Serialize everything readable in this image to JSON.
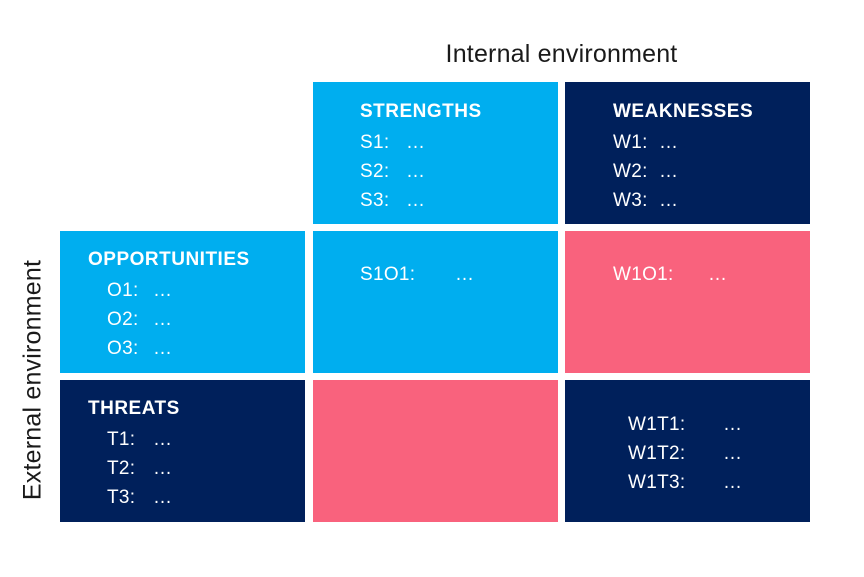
{
  "axes": {
    "top_label": "Internal environment",
    "left_label": "External environment"
  },
  "strengths": {
    "title": "STRENGTHS",
    "items": [
      {
        "key": "S1:",
        "value": "…"
      },
      {
        "key": "S2:",
        "value": "…"
      },
      {
        "key": "S3:",
        "value": "…"
      }
    ]
  },
  "weaknesses": {
    "title": "WEAKNESSES",
    "items": [
      {
        "key": "W1:",
        "value": "…"
      },
      {
        "key": "W2:",
        "value": "…"
      },
      {
        "key": "W3:",
        "value": "…"
      }
    ]
  },
  "opportunities": {
    "title": "OPPORTUNITIES",
    "items": [
      {
        "key": "O1:",
        "value": "…"
      },
      {
        "key": "O2:",
        "value": "…"
      },
      {
        "key": "O3:",
        "value": "…"
      }
    ]
  },
  "threats": {
    "title": "THREATS",
    "items": [
      {
        "key": "T1:",
        "value": "…"
      },
      {
        "key": "T2:",
        "value": "…"
      },
      {
        "key": "T3:",
        "value": "…"
      }
    ]
  },
  "so": {
    "items": [
      {
        "key": "S1O1:",
        "value": "…"
      }
    ]
  },
  "wo": {
    "items": [
      {
        "key": "W1O1:",
        "value": "…"
      }
    ]
  },
  "wt": {
    "items": [
      {
        "key": "W1T1:",
        "value": "…"
      },
      {
        "key": "W1T2:",
        "value": "…"
      },
      {
        "key": "W1T3:",
        "value": "…"
      }
    ]
  },
  "colors": {
    "light_blue": "#00aeef",
    "dark_navy": "#00205b",
    "pink": "#f9627d"
  }
}
